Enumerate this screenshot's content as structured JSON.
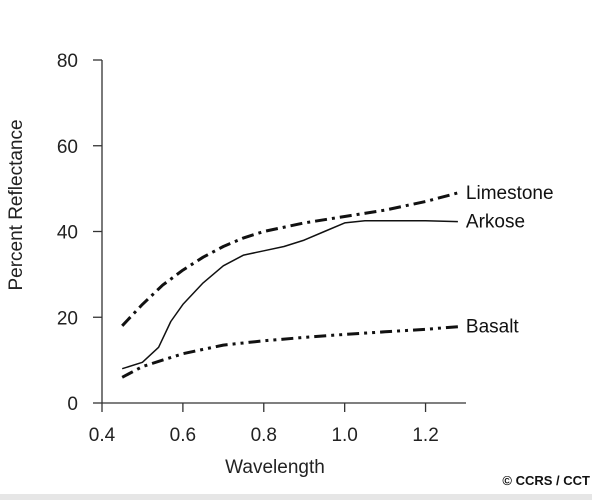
{
  "credit": "© CCRS / CCT",
  "chart_data": {
    "type": "line",
    "title": "",
    "xlabel": "Wavelength",
    "ylabel": "Percent Reflectance",
    "xlim": [
      0.4,
      1.3
    ],
    "ylim": [
      0,
      80
    ],
    "x_ticks": [
      0.4,
      0.6,
      0.8,
      1.0,
      1.2
    ],
    "x_tick_labels": [
      "0.4",
      "0.6",
      "0.8",
      "1.0",
      "1.2"
    ],
    "y_ticks": [
      0,
      20,
      40,
      60,
      80
    ],
    "y_tick_labels": [
      "0",
      "20",
      "40",
      "60",
      "80"
    ],
    "grid": false,
    "legend": "inline labels at right end of each curve",
    "series": [
      {
        "name": "Limestone",
        "style": "dash-dot",
        "color": "#111111",
        "x": [
          0.45,
          0.5,
          0.55,
          0.6,
          0.65,
          0.7,
          0.75,
          0.8,
          0.9,
          1.0,
          1.1,
          1.2,
          1.28
        ],
        "y": [
          18,
          23,
          27.5,
          31,
          34,
          36.5,
          38.5,
          40,
          42,
          43.5,
          45,
          47,
          49
        ]
      },
      {
        "name": "Arkose",
        "style": "solid",
        "color": "#111111",
        "x": [
          0.45,
          0.5,
          0.54,
          0.57,
          0.6,
          0.65,
          0.7,
          0.75,
          0.8,
          0.85,
          0.9,
          0.95,
          1.0,
          1.05,
          1.1,
          1.2,
          1.28
        ],
        "y": [
          8,
          9.5,
          13,
          19,
          23,
          28,
          32,
          34.5,
          35.5,
          36.5,
          38,
          40,
          42,
          42.5,
          42.5,
          42.5,
          42.3
        ]
      },
      {
        "name": "Basalt",
        "style": "dash-dot-dot",
        "color": "#111111",
        "x": [
          0.45,
          0.5,
          0.55,
          0.6,
          0.7,
          0.8,
          0.9,
          1.0,
          1.1,
          1.2,
          1.28
        ],
        "y": [
          6,
          8.5,
          10,
          11.5,
          13.5,
          14.5,
          15.3,
          16,
          16.6,
          17.2,
          17.8
        ]
      }
    ]
  }
}
